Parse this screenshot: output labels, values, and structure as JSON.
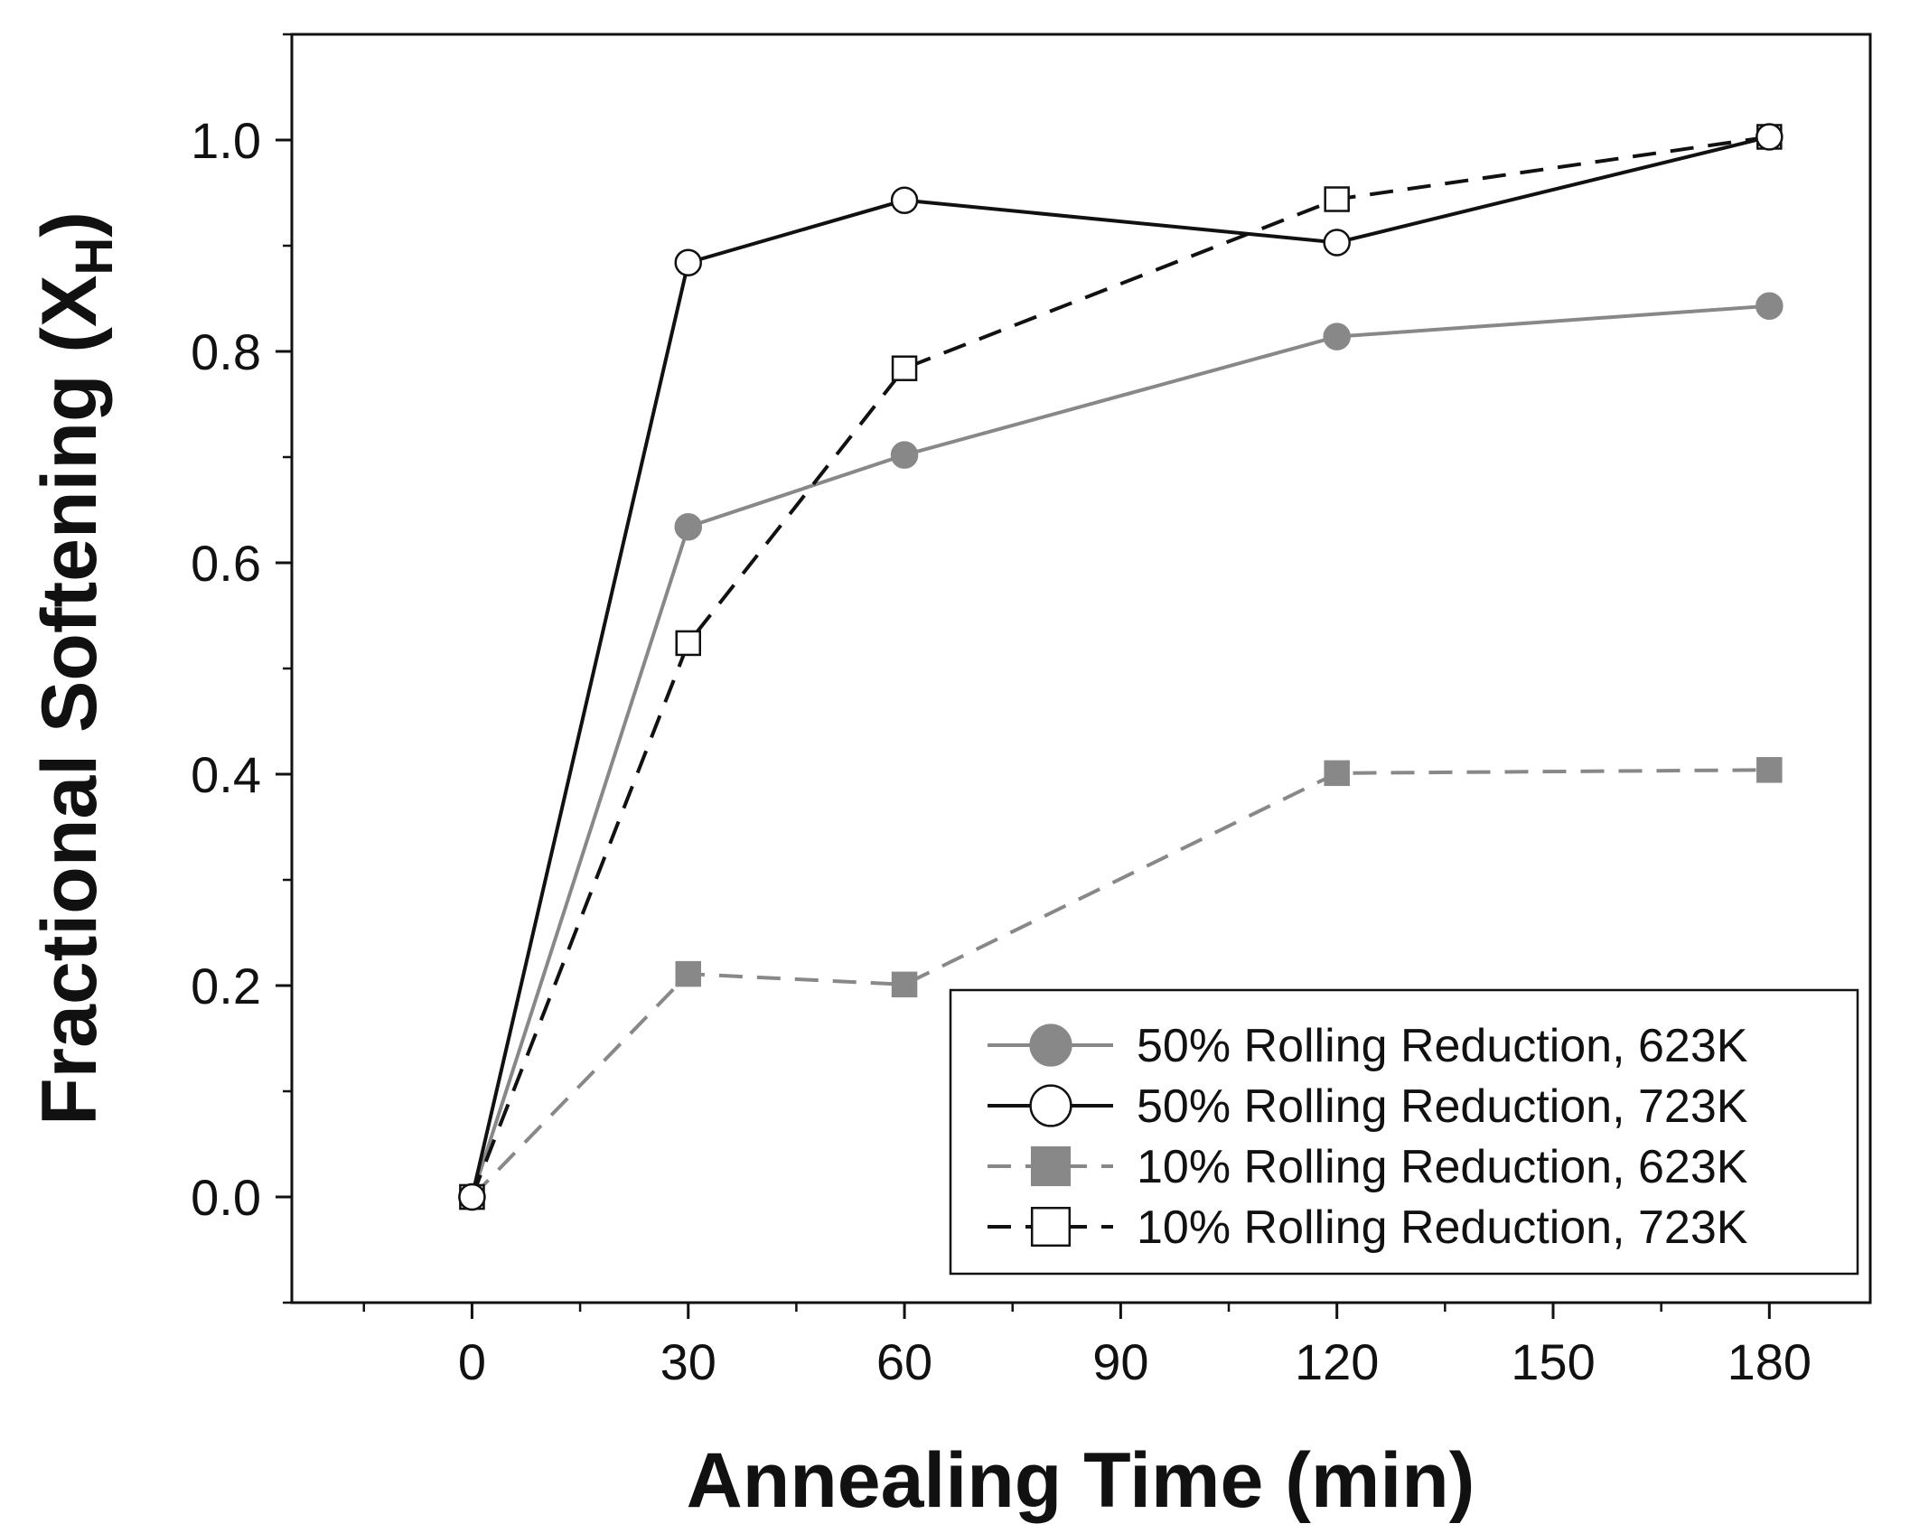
{
  "chart_data": {
    "type": "line",
    "title": "",
    "xlabel": "Annealing Time (min)",
    "ylabel": "Fractional Softening (X",
    "ylabel_subscript": "H",
    "ylabel_close": ")",
    "xlim": [
      -25,
      194
    ],
    "ylim": [
      -0.1,
      1.1
    ],
    "xticks": [
      0,
      30,
      60,
      90,
      120,
      150,
      180
    ],
    "xtick_labels": [
      "0",
      "30",
      "60",
      "90",
      "120",
      "150",
      "180"
    ],
    "yticks": [
      0.0,
      0.2,
      0.4,
      0.6,
      0.8,
      1.0
    ],
    "ytick_labels": [
      "0.0",
      "0.2",
      "0.4",
      "0.6",
      "0.8",
      "1.0"
    ],
    "legend_position": "bottom-right",
    "grid": false,
    "series": [
      {
        "name": "50% Rolling Reduction, 623K",
        "x": [
          0,
          30,
          60,
          120,
          180
        ],
        "y": [
          0.0,
          0.634,
          0.702,
          0.814,
          0.843
        ],
        "color": "#888888",
        "marker": "circle",
        "filled": true,
        "dash": "solid"
      },
      {
        "name": "50% Rolling Reduction, 723K",
        "x": [
          0,
          30,
          60,
          120,
          180
        ],
        "y": [
          0.0,
          0.884,
          0.943,
          0.903,
          1.003
        ],
        "color": "#111111",
        "marker": "circle",
        "filled": false,
        "dash": "solid"
      },
      {
        "name": "10% Rolling Reduction, 623K",
        "x": [
          0,
          30,
          60,
          120,
          180
        ],
        "y": [
          0.0,
          0.211,
          0.201,
          0.401,
          0.404
        ],
        "color": "#888888",
        "marker": "square",
        "filled": true,
        "dash": "dashdot"
      },
      {
        "name": "10% Rolling Reduction, 723K",
        "x": [
          0,
          30,
          60,
          120,
          180
        ],
        "y": [
          0.0,
          0.524,
          0.784,
          0.944,
          1.003
        ],
        "color": "#111111",
        "marker": "square",
        "filled": false,
        "dash": "dashed"
      }
    ]
  }
}
